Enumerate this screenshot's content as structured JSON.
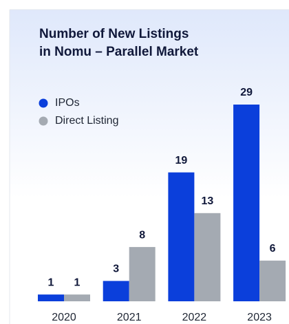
{
  "chart_data": {
    "type": "bar",
    "title": [
      "Number of New Listings",
      "in Nomu – Parallel Market"
    ],
    "categories": [
      "2020",
      "2021",
      "2022",
      "2023"
    ],
    "series": [
      {
        "name": "IPOs",
        "color": "#0b3fdb",
        "values": [
          1,
          3,
          19,
          29
        ]
      },
      {
        "name": "Direct Listing",
        "color": "#a4aab2",
        "values": [
          1,
          8,
          13,
          6
        ]
      }
    ],
    "legend": "top-left"
  }
}
